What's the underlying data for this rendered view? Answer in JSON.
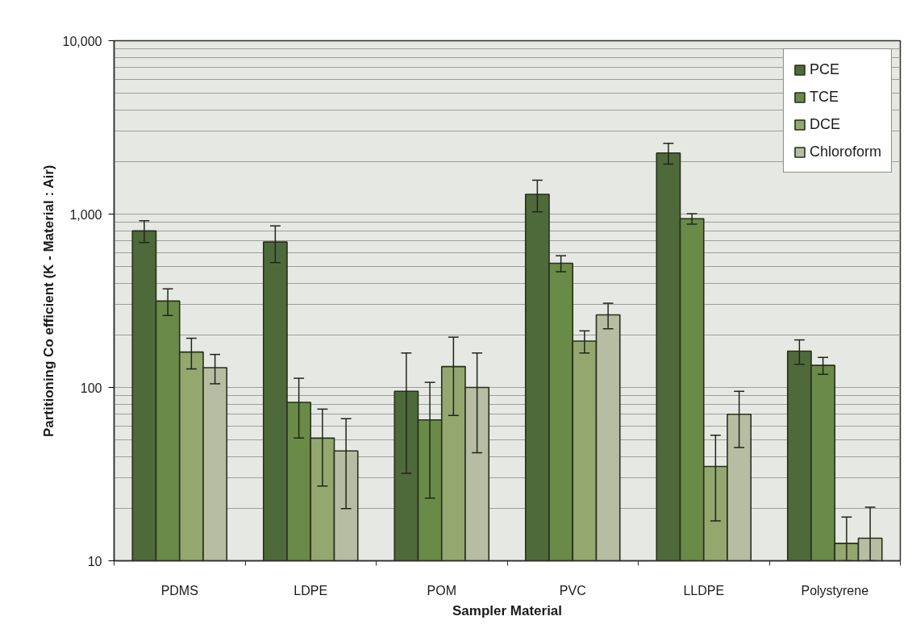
{
  "chart_data": {
    "type": "bar",
    "xlabel": "Sampler Material",
    "ylabel": "Partitioning Co efficient (K - Material : Air)",
    "categories": [
      "PDMS",
      "LDPE",
      "POM",
      "PVC",
      "LLDPE",
      "Polystyrene"
    ],
    "series": [
      {
        "name": "PCE",
        "color": "#4f6a3a",
        "values": [
          800,
          690,
          95,
          1300,
          2250,
          162
        ],
        "errors": [
          115,
          165,
          63,
          270,
          310,
          26
        ]
      },
      {
        "name": "TCE",
        "color": "#6a8a47",
        "values": [
          315,
          82,
          65,
          520,
          940,
          134
        ],
        "errors": [
          55,
          31,
          42,
          55,
          65,
          15
        ]
      },
      {
        "name": "DCE",
        "color": "#93a76f",
        "values": [
          160,
          51,
          132,
          185,
          35,
          12.6
        ],
        "errors": [
          32,
          24,
          63,
          27,
          18,
          [
            10,
            17.9
          ]
        ]
      },
      {
        "name": "Chloroform",
        "color": "#b7bda3",
        "values": [
          130,
          43,
          100,
          262,
          70,
          13.5
        ],
        "errors": [
          25,
          23,
          58,
          44,
          25,
          [
            10,
            20.4
          ]
        ]
      }
    ],
    "ylim": [
      10,
      10000
    ],
    "yticks": [
      10,
      100,
      {
        "value": 1000,
        "label": "1,000"
      },
      {
        "value": 10000,
        "label": "10,000"
      }
    ],
    "log": "y",
    "grid": "y",
    "legend": "top right"
  }
}
